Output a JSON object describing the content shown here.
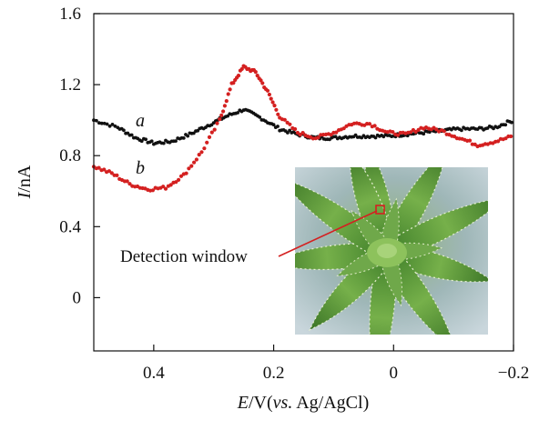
{
  "chart_data": {
    "type": "scatter",
    "xlabel_italic": "E",
    "xlabel_rest": "/V(",
    "xlabel_vs": "vs.",
    "xlabel_tail": " Ag/AgCl)",
    "ylabel_italic": "I",
    "ylabel_rest": "/nA",
    "xlim": [
      0.5,
      -0.2
    ],
    "ylim": [
      -0.3,
      1.6
    ],
    "x_ticks": [
      {
        "v": 0.4,
        "label": "0.4"
      },
      {
        "v": 0.2,
        "label": "0.2"
      },
      {
        "v": 0.0,
        "label": "0"
      },
      {
        "v": -0.2,
        "label": "−0.2"
      }
    ],
    "y_ticks": [
      {
        "v": 0.0,
        "label": "0"
      },
      {
        "v": 0.4,
        "label": "0.4"
      },
      {
        "v": 0.8,
        "label": "0.8"
      },
      {
        "v": 1.2,
        "label": "1.2"
      },
      {
        "v": 1.6,
        "label": "1.6"
      }
    ],
    "series": [
      {
        "label": "a",
        "color": "#111111",
        "points": [
          [
            0.5,
            1.0
          ],
          [
            0.46,
            0.96
          ],
          [
            0.43,
            0.9
          ],
          [
            0.4,
            0.87
          ],
          [
            0.37,
            0.88
          ],
          [
            0.34,
            0.92
          ],
          [
            0.31,
            0.97
          ],
          [
            0.28,
            1.02
          ],
          [
            0.25,
            1.06
          ],
          [
            0.22,
            1.01
          ],
          [
            0.19,
            0.95
          ],
          [
            0.16,
            0.92
          ],
          [
            0.13,
            0.9
          ],
          [
            0.1,
            0.9
          ],
          [
            0.07,
            0.91
          ],
          [
            0.04,
            0.91
          ],
          [
            0.01,
            0.91
          ],
          [
            -0.02,
            0.92
          ],
          [
            -0.05,
            0.93
          ],
          [
            -0.08,
            0.94
          ],
          [
            -0.11,
            0.95
          ],
          [
            -0.14,
            0.95
          ],
          [
            -0.17,
            0.96
          ],
          [
            -0.2,
            1.0
          ]
        ]
      },
      {
        "label": "b",
        "color": "#d42020",
        "points": [
          [
            0.5,
            0.74
          ],
          [
            0.47,
            0.7
          ],
          [
            0.44,
            0.64
          ],
          [
            0.41,
            0.61
          ],
          [
            0.38,
            0.62
          ],
          [
            0.35,
            0.69
          ],
          [
            0.32,
            0.82
          ],
          [
            0.29,
            1.0
          ],
          [
            0.27,
            1.2
          ],
          [
            0.25,
            1.3
          ],
          [
            0.23,
            1.27
          ],
          [
            0.21,
            1.16
          ],
          [
            0.19,
            1.02
          ],
          [
            0.16,
            0.93
          ],
          [
            0.13,
            0.9
          ],
          [
            0.1,
            0.93
          ],
          [
            0.07,
            0.98
          ],
          [
            0.04,
            0.98
          ],
          [
            0.01,
            0.93
          ],
          [
            -0.02,
            0.92
          ],
          [
            -0.05,
            0.96
          ],
          [
            -0.08,
            0.94
          ],
          [
            -0.11,
            0.9
          ],
          [
            -0.14,
            0.86
          ],
          [
            -0.17,
            0.88
          ],
          [
            -0.2,
            0.91
          ]
        ]
      }
    ],
    "inset": {
      "label": "Detection window",
      "marker_color": "#d42020",
      "photo_subject": "aloe plant viewed from above"
    }
  }
}
